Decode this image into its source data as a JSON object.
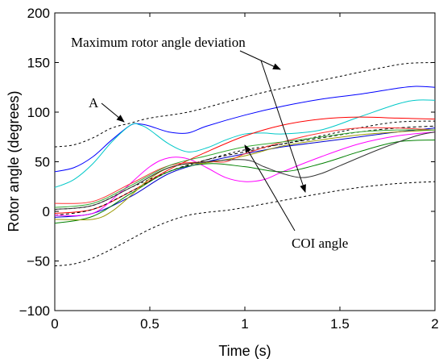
{
  "chart_data": {
    "type": "line",
    "xlabel": "Time (s)",
    "ylabel": "Rotor angle (degrees)",
    "xlim": [
      0,
      2
    ],
    "ylim": [
      -100,
      200
    ],
    "xticks": [
      0,
      0.5,
      1,
      1.5,
      2
    ],
    "xtick_labels": [
      "0",
      "0.5",
      "1",
      "1.5",
      "2"
    ],
    "yticks": [
      -100,
      -50,
      0,
      50,
      100,
      150,
      200
    ],
    "ytick_labels": [
      "−100",
      "−50",
      "0",
      "50",
      "100",
      "150",
      "200"
    ],
    "grid": false,
    "legend": "none",
    "annotations": {
      "max_deviation": "Maximum rotor angle deviation",
      "point_a": "A",
      "coi": "COI angle"
    },
    "series": [
      {
        "color": "#0000ff",
        "values": [
          [
            0,
            40
          ],
          [
            0.1,
            44
          ],
          [
            0.2,
            55
          ],
          [
            0.3,
            72
          ],
          [
            0.4,
            87
          ],
          [
            0.45,
            88
          ],
          [
            0.5,
            86
          ],
          [
            0.6,
            80
          ],
          [
            0.7,
            79
          ],
          [
            0.8,
            86
          ],
          [
            1.0,
            97
          ],
          [
            1.2,
            106
          ],
          [
            1.4,
            113
          ],
          [
            1.6,
            118
          ],
          [
            1.8,
            124
          ],
          [
            1.9,
            126
          ],
          [
            2.0,
            125
          ]
        ]
      },
      {
        "color": "#00c8c8",
        "values": [
          [
            0,
            24
          ],
          [
            0.1,
            32
          ],
          [
            0.2,
            48
          ],
          [
            0.3,
            70
          ],
          [
            0.4,
            87
          ],
          [
            0.45,
            87
          ],
          [
            0.5,
            82
          ],
          [
            0.6,
            68
          ],
          [
            0.7,
            60
          ],
          [
            0.8,
            64
          ],
          [
            0.9,
            72
          ],
          [
            1.0,
            78
          ],
          [
            1.1,
            79
          ],
          [
            1.2,
            78
          ],
          [
            1.4,
            82
          ],
          [
            1.6,
            95
          ],
          [
            1.8,
            108
          ],
          [
            1.9,
            112
          ],
          [
            2.0,
            112
          ]
        ]
      },
      {
        "color": "#ff0000",
        "values": [
          [
            0,
            -2
          ],
          [
            0.2,
            2
          ],
          [
            0.4,
            20
          ],
          [
            0.6,
            42
          ],
          [
            0.8,
            60
          ],
          [
            1.0,
            76
          ],
          [
            1.2,
            87
          ],
          [
            1.4,
            93
          ],
          [
            1.6,
            95
          ],
          [
            1.8,
            94
          ],
          [
            2.0,
            93
          ]
        ]
      },
      {
        "color": "#000000",
        "dash": "4,3",
        "values": [
          [
            0,
            -4
          ],
          [
            0.2,
            2
          ],
          [
            0.4,
            20
          ],
          [
            0.6,
            40
          ],
          [
            0.8,
            52
          ],
          [
            1.0,
            60
          ],
          [
            1.2,
            68
          ],
          [
            1.4,
            74
          ],
          [
            1.6,
            80
          ],
          [
            1.8,
            84
          ],
          [
            2.0,
            86
          ]
        ]
      },
      {
        "color": "#0000cc",
        "values": [
          [
            0,
            -6
          ],
          [
            0.2,
            -2
          ],
          [
            0.4,
            15
          ],
          [
            0.6,
            38
          ],
          [
            0.8,
            50
          ],
          [
            1.0,
            58
          ],
          [
            1.2,
            65
          ],
          [
            1.4,
            70
          ],
          [
            1.6,
            75
          ],
          [
            1.8,
            80
          ],
          [
            2.0,
            84
          ]
        ]
      },
      {
        "color": "#ff00ff",
        "values": [
          [
            0,
            -4
          ],
          [
            0.2,
            -2
          ],
          [
            0.35,
            20
          ],
          [
            0.5,
            45
          ],
          [
            0.6,
            54
          ],
          [
            0.7,
            53
          ],
          [
            0.8,
            44
          ],
          [
            0.9,
            34
          ],
          [
            1.0,
            30
          ],
          [
            1.1,
            32
          ],
          [
            1.2,
            40
          ],
          [
            1.4,
            55
          ],
          [
            1.6,
            68
          ],
          [
            1.8,
            76
          ],
          [
            2.0,
            80
          ]
        ]
      },
      {
        "color": "#008000",
        "values": [
          [
            0,
            -12
          ],
          [
            0.2,
            -5
          ],
          [
            0.4,
            18
          ],
          [
            0.6,
            40
          ],
          [
            0.8,
            48
          ],
          [
            1.0,
            45
          ],
          [
            1.2,
            40
          ],
          [
            1.4,
            48
          ],
          [
            1.6,
            60
          ],
          [
            1.8,
            70
          ],
          [
            2.0,
            72
          ]
        ]
      },
      {
        "color": "#999900",
        "values": [
          [
            0,
            -8
          ],
          [
            0.2,
            -8
          ],
          [
            0.3,
            0
          ],
          [
            0.4,
            16
          ],
          [
            0.5,
            33
          ],
          [
            0.6,
            44
          ],
          [
            0.7,
            48
          ],
          [
            0.8,
            49
          ],
          [
            1.0,
            56
          ],
          [
            1.2,
            66
          ],
          [
            1.4,
            72
          ],
          [
            1.6,
            77
          ],
          [
            1.8,
            80
          ],
          [
            2.0,
            82
          ]
        ]
      },
      {
        "color": "#ff3333",
        "values": [
          [
            0,
            8
          ],
          [
            0.2,
            10
          ],
          [
            0.4,
            28
          ],
          [
            0.6,
            46
          ],
          [
            0.8,
            50
          ],
          [
            0.9,
            50
          ],
          [
            1.0,
            58
          ],
          [
            1.2,
            70
          ],
          [
            1.4,
            79
          ],
          [
            1.6,
            84
          ],
          [
            1.8,
            84
          ],
          [
            2.0,
            82
          ]
        ]
      },
      {
        "color": "#333333",
        "values": [
          [
            0,
            2
          ],
          [
            0.2,
            6
          ],
          [
            0.4,
            24
          ],
          [
            0.6,
            44
          ],
          [
            0.8,
            50
          ],
          [
            1.0,
            52
          ],
          [
            1.1,
            45
          ],
          [
            1.2,
            38
          ],
          [
            1.3,
            34
          ],
          [
            1.4,
            38
          ],
          [
            1.5,
            46
          ],
          [
            1.7,
            62
          ],
          [
            1.9,
            76
          ],
          [
            2.0,
            80
          ]
        ]
      },
      {
        "color": "#33aa33",
        "values": [
          [
            0,
            4
          ],
          [
            0.2,
            8
          ],
          [
            0.4,
            26
          ],
          [
            0.6,
            46
          ],
          [
            0.8,
            56
          ],
          [
            1.0,
            65
          ],
          [
            1.2,
            70
          ],
          [
            1.4,
            75
          ],
          [
            1.6,
            80
          ],
          [
            1.8,
            82
          ],
          [
            2.0,
            82
          ]
        ]
      }
    ],
    "bounds": [
      {
        "name": "upper",
        "values": [
          [
            0,
            65
          ],
          [
            0.1,
            67
          ],
          [
            0.2,
            74
          ],
          [
            0.3,
            84
          ],
          [
            0.4,
            89
          ],
          [
            0.5,
            94
          ],
          [
            0.7,
            100
          ],
          [
            0.9,
            110
          ],
          [
            1.1,
            120
          ],
          [
            1.3,
            128
          ],
          [
            1.5,
            136
          ],
          [
            1.7,
            144
          ],
          [
            1.85,
            149
          ],
          [
            2.0,
            150
          ]
        ]
      },
      {
        "name": "coi",
        "values": [
          [
            0,
            2
          ],
          [
            0.2,
            6
          ],
          [
            0.4,
            24
          ],
          [
            0.6,
            40
          ],
          [
            0.8,
            52
          ],
          [
            1.0,
            62
          ],
          [
            1.2,
            68
          ],
          [
            1.4,
            76
          ],
          [
            1.6,
            84
          ],
          [
            1.8,
            90
          ],
          [
            2.0,
            91
          ]
        ]
      },
      {
        "name": "lower",
        "values": [
          [
            0,
            -55
          ],
          [
            0.1,
            -53
          ],
          [
            0.2,
            -47
          ],
          [
            0.3,
            -38
          ],
          [
            0.4,
            -28
          ],
          [
            0.5,
            -18
          ],
          [
            0.6,
            -10
          ],
          [
            0.7,
            -4
          ],
          [
            0.8,
            -1
          ],
          [
            0.9,
            1
          ],
          [
            1.0,
            4
          ],
          [
            1.2,
            11
          ],
          [
            1.4,
            18
          ],
          [
            1.6,
            24
          ],
          [
            1.8,
            28
          ],
          [
            2.0,
            30
          ]
        ]
      }
    ]
  }
}
